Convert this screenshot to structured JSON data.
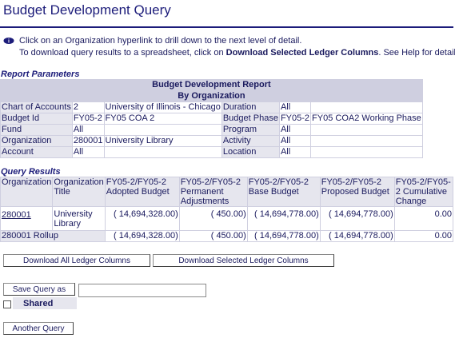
{
  "page": {
    "title": "Budget Development Query"
  },
  "info": {
    "line1": "Click on an Organization hyperlink to drill down to the next level of detail.",
    "line2_prefix": "To download query results to a spreadsheet, click on ",
    "line2_bold": "Download Selected Ledger Columns",
    "line2_suffix": ". See Help for details."
  },
  "report_parameters": {
    "heading": "Report Parameters",
    "report_title": "Budget Development Report",
    "report_subtitle": "By Organization",
    "rows": [
      {
        "l1": "Chart of Accounts",
        "v1a": "2",
        "v1b": "University of Illinois - Chicago",
        "l2": "Duration",
        "v2a": "All",
        "v2b": ""
      },
      {
        "l1": "Budget Id",
        "v1a": "FY05-2",
        "v1b": "FY05 COA 2",
        "l2": "Budget Phase",
        "v2a": "FY05-2",
        "v2b": "FY05 COA2 Working Phase"
      },
      {
        "l1": "Fund",
        "v1a": "All",
        "v1b": "",
        "l2": "Program",
        "v2a": "All",
        "v2b": ""
      },
      {
        "l1": "Organization",
        "v1a": "280001",
        "v1b": "University Library",
        "l2": "Activity",
        "v2a": "All",
        "v2b": ""
      },
      {
        "l1": "Account",
        "v1a": "All",
        "v1b": "",
        "l2": "Location",
        "v2a": "All",
        "v2b": ""
      }
    ]
  },
  "query_results": {
    "heading": "Query Results",
    "headers": {
      "organization": "Organization",
      "org_title": "Organization Title",
      "adopted": "FY05-2/FY05-2 Adopted Budget",
      "permanent": "FY05-2/FY05-2 Permanent Adjustments",
      "base": "FY05-2/FY05-2 Base Budget",
      "proposed": "FY05-2/FY05-2 Proposed Budget",
      "cumulative": "FY05-2/FY05-2 Cumulative Change"
    },
    "row": {
      "organization": "280001",
      "org_title": "University Library",
      "adopted": "( 14,694,328.00)",
      "permanent": "( 450.00)",
      "base": "( 14,694,778.00)",
      "proposed": "( 14,694,778.00)",
      "cumulative": "0.00"
    },
    "rollup": {
      "label": "280001 Rollup",
      "adopted": "( 14,694,328.00)",
      "permanent": "( 450.00)",
      "base": "( 14,694,778.00)",
      "proposed": "( 14,694,778.00)",
      "cumulative": "0.00"
    }
  },
  "buttons": {
    "download_all": "Download All Ledger Columns",
    "download_selected": "Download Selected Ledger Columns",
    "save_query": "Save Query as",
    "another_query": "Another Query"
  },
  "save": {
    "input_value": "",
    "shared_label": "Shared",
    "shared_checked": false
  },
  "colors": {
    "text": "#1a1a5e",
    "title": "#1c1c7a",
    "table_border": "#cfcfe0",
    "label_bg": "#e6e6ee"
  },
  "icons": {
    "info": "info-bubble-icon"
  }
}
